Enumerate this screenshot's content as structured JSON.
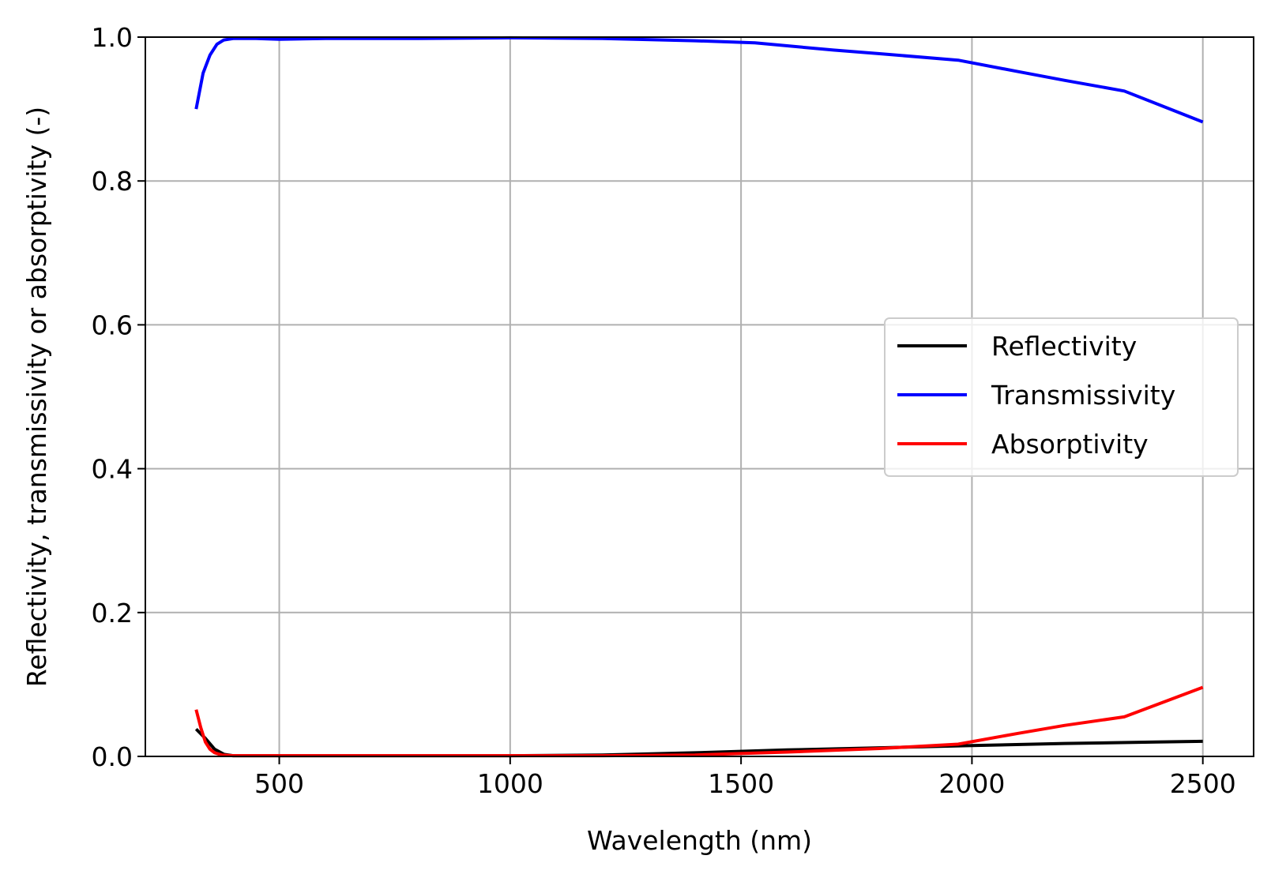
{
  "chart_data": {
    "type": "line",
    "title": "",
    "xlabel": "Wavelength (nm)",
    "ylabel": "Reflectivity, transmissivity or absorptivity (-)",
    "xlim": [
      210,
      2610
    ],
    "ylim": [
      0,
      1.0
    ],
    "xticks": [
      500,
      1000,
      1500,
      2000,
      2500
    ],
    "xtick_labels": [
      "500",
      "1000",
      "1500",
      "2000",
      "2500"
    ],
    "yticks": [
      0,
      0.2,
      0.4,
      0.6,
      0.8,
      1.0
    ],
    "ytick_labels": [
      "0.0",
      "0.2",
      "0.4",
      "0.6",
      "0.8",
      "1.0"
    ],
    "grid": true,
    "legend_position": "center-right",
    "series": [
      {
        "name": "Reflectivity",
        "color": "#000000",
        "x": [
          320,
          340,
          360,
          380,
          400,
          450,
          500,
          600,
          800,
          1000,
          1200,
          1400,
          1600,
          1800,
          2000,
          2200,
          2400,
          2500
        ],
        "y": [
          0.038,
          0.025,
          0.01,
          0.003,
          0.001,
          0.001,
          0.001,
          0.001,
          0.001,
          0.001,
          0.002,
          0.005,
          0.009,
          0.012,
          0.015,
          0.018,
          0.02,
          0.021
        ]
      },
      {
        "name": "Transmissivity",
        "color": "#0000ff",
        "x": [
          320,
          335,
          350,
          365,
          380,
          400,
          420,
          450,
          500,
          600,
          800,
          1000,
          1200,
          1400,
          1530,
          1700,
          1800,
          1970,
          2100,
          2200,
          2330,
          2500
        ],
        "y": [
          0.9,
          0.95,
          0.975,
          0.99,
          0.996,
          0.998,
          0.998,
          0.998,
          0.997,
          0.998,
          0.998,
          0.999,
          0.998,
          0.995,
          0.992,
          0.982,
          0.977,
          0.968,
          0.952,
          0.94,
          0.925,
          0.882
        ]
      },
      {
        "name": "Absorptivity",
        "color": "#ff0000",
        "x": [
          320,
          330,
          340,
          350,
          360,
          375,
          400,
          450,
          500,
          600,
          800,
          1000,
          1200,
          1400,
          1600,
          1800,
          1970,
          2100,
          2200,
          2330,
          2500
        ],
        "y": [
          0.065,
          0.04,
          0.02,
          0.01,
          0.005,
          0.002,
          0.001,
          0.001,
          0.001,
          0.001,
          0.001,
          0.001,
          0.001,
          0.002,
          0.006,
          0.011,
          0.017,
          0.032,
          0.043,
          0.055,
          0.096
        ]
      }
    ]
  }
}
